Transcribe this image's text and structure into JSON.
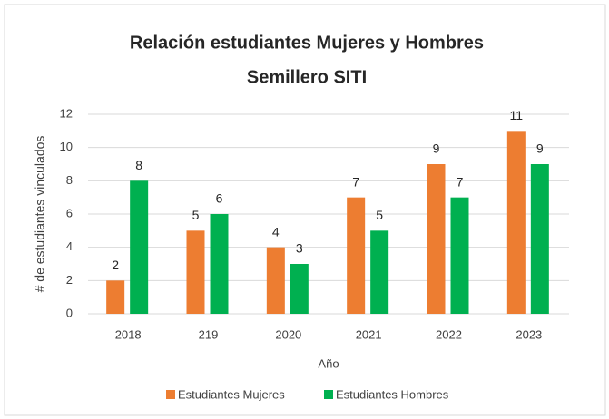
{
  "chart_data": {
    "type": "bar",
    "title": [
      "Relación estudiantes Mujeres y Hombres",
      "Semillero SITI"
    ],
    "x_label": "Año",
    "y_label": "# de estudiantes vinculados",
    "categories": [
      "2018",
      "219",
      "2020",
      "2021",
      "2022",
      "2023"
    ],
    "series": [
      {
        "name": "Estudiantes Mujeres",
        "color": "#ed7d31",
        "values": [
          2,
          5,
          4,
          7,
          9,
          11
        ]
      },
      {
        "name": "Estudiantes Hombres",
        "color": "#00b050",
        "values": [
          8,
          6,
          3,
          5,
          7,
          9
        ]
      }
    ],
    "ylim": [
      0,
      12
    ],
    "yticks": [
      0,
      2,
      4,
      6,
      8,
      10,
      12
    ],
    "grid": true,
    "legend": "bottom"
  }
}
